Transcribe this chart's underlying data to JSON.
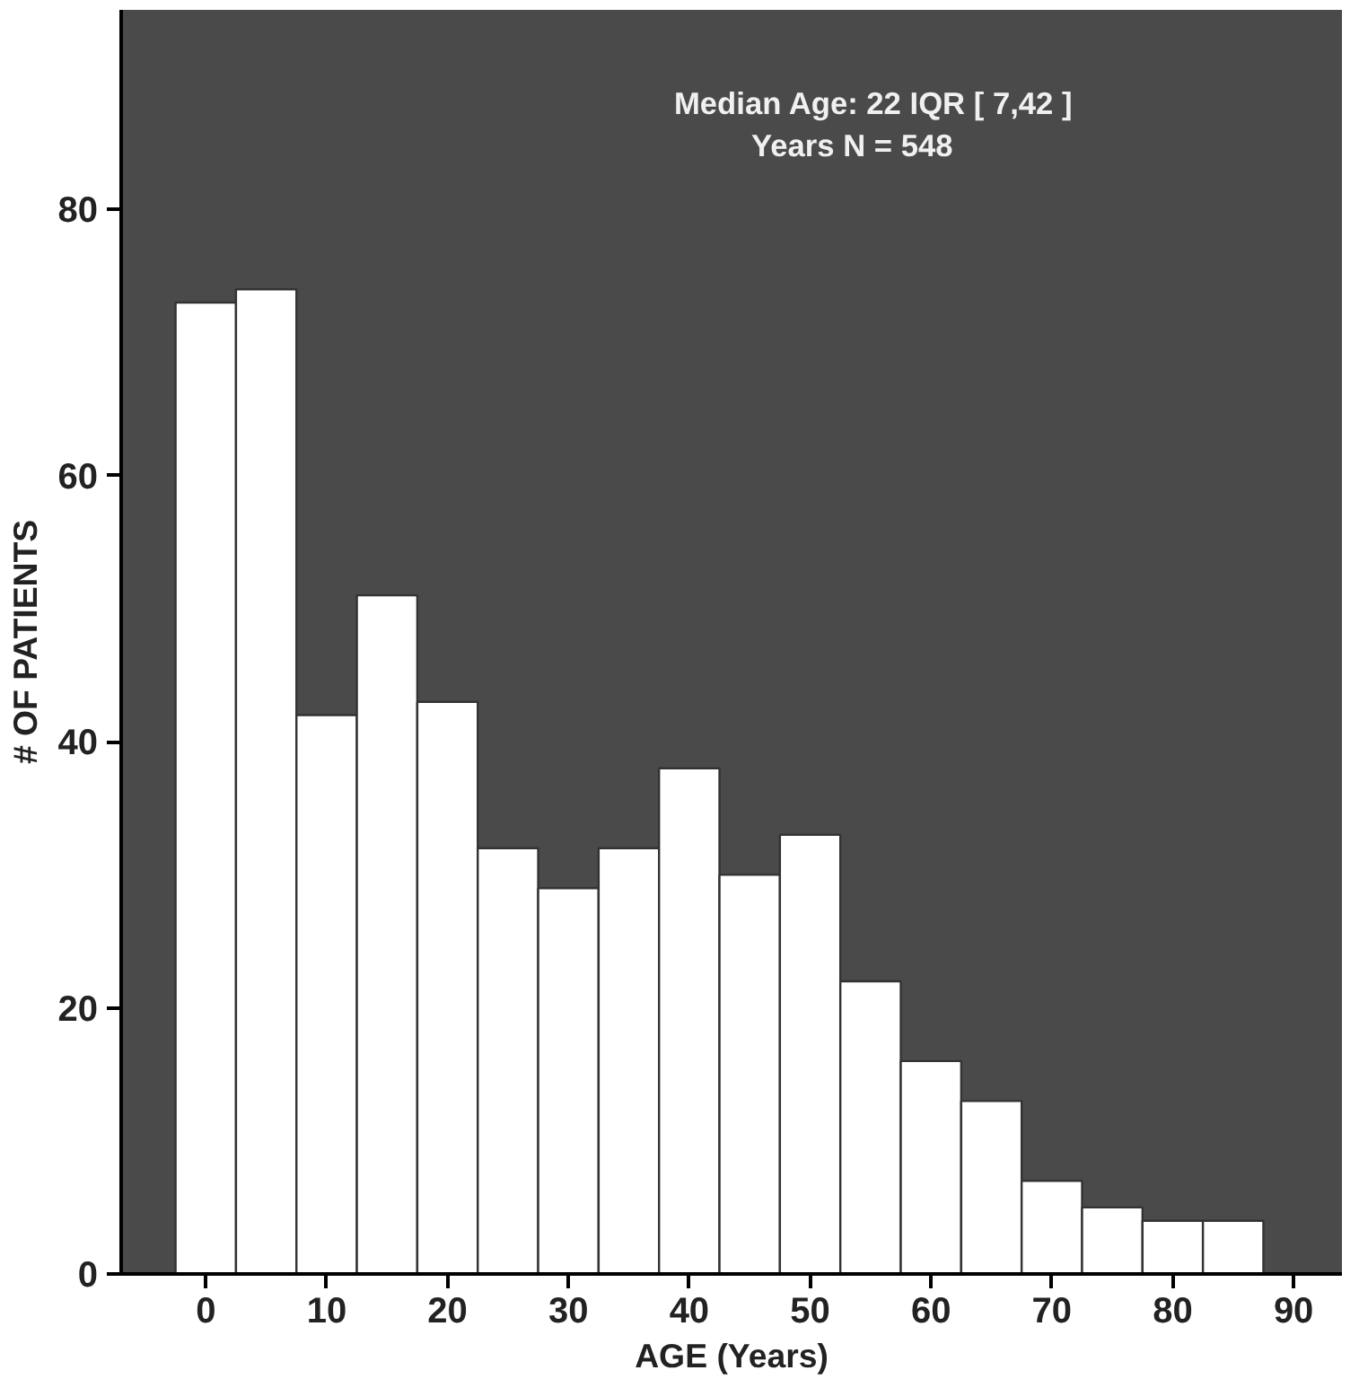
{
  "chart_data": {
    "type": "histogram",
    "xlabel": "AGE (Years)",
    "ylabel": "# OF PATIENTS",
    "annotations": [
      "Median Age:  22 IQR [ 7,42 ]",
      "Years       N = 548"
    ],
    "bins": [
      -2.5,
      2.5,
      7.5,
      12.5,
      17.5,
      22.5,
      27.5,
      32.5,
      37.5,
      42.5,
      47.5,
      52.5,
      57.5,
      62.5,
      67.5,
      72.5,
      77.5,
      82.5,
      87.5
    ],
    "values": [
      73,
      74,
      42,
      51,
      43,
      32,
      29,
      32,
      38,
      30,
      33,
      22,
      16,
      13,
      7,
      5,
      4,
      4
    ],
    "color": "#ffffff",
    "xlim": [
      -7,
      94
    ],
    "ylim": [
      0,
      95
    ],
    "xticks": [
      0,
      10,
      20,
      30,
      40,
      50,
      60,
      70,
      80,
      90
    ],
    "yticks": [
      0,
      20,
      40,
      60,
      80
    ],
    "grid": false
  }
}
